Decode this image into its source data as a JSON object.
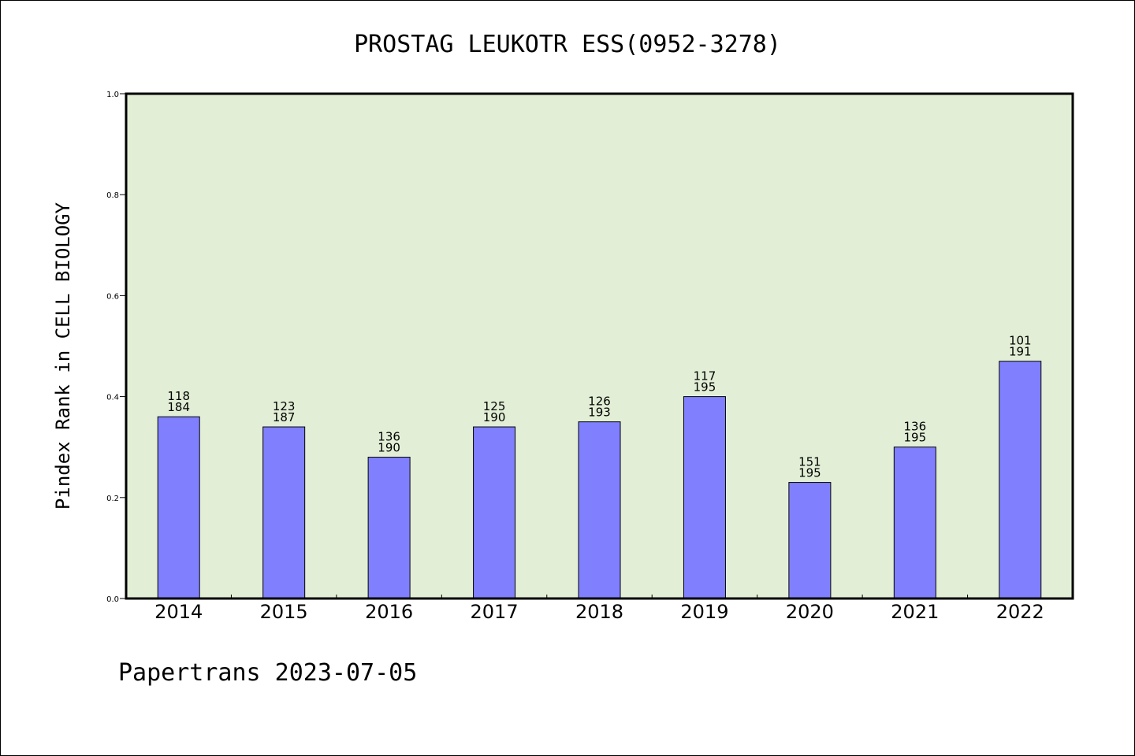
{
  "chart_data": {
    "type": "bar",
    "title": "PROSTAG LEUKOTR ESS(0952-3278)",
    "xlabel": "",
    "ylabel": "Pindex Rank in CELL BIOLOGY",
    "ylim": [
      0,
      1.0
    ],
    "yticks": [
      "0.0",
      "0.2",
      "0.4",
      "0.6",
      "0.8",
      "1.0"
    ],
    "grid": false,
    "categories": [
      "2014",
      "2015",
      "2016",
      "2017",
      "2018",
      "2019",
      "2020",
      "2021",
      "2022"
    ],
    "values": [
      0.36,
      0.34,
      0.28,
      0.34,
      0.35,
      0.4,
      0.23,
      0.3,
      0.47
    ],
    "ranks": [
      "118",
      "123",
      "136",
      "125",
      "126",
      "117",
      "151",
      "136",
      "101"
    ],
    "totals": [
      "184",
      "187",
      "190",
      "190",
      "193",
      "195",
      "195",
      "195",
      "191"
    ],
    "colors": {
      "plot_background": "#e2efd6",
      "bar_fill": "#8080ff",
      "bar_stroke": "#000000"
    }
  },
  "footer": "Papertrans 2023-07-05"
}
